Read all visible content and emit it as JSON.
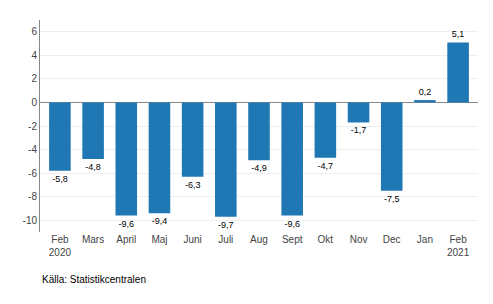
{
  "chart_data": {
    "type": "bar",
    "categories": [
      "Feb\n2020",
      "Mars",
      "April",
      "Maj",
      "Juni",
      "Juli",
      "Aug",
      "Sept",
      "Okt",
      "Nov",
      "Dec",
      "Jan",
      "Feb\n2021"
    ],
    "values": [
      -5.8,
      -4.8,
      -9.6,
      -9.4,
      -6.3,
      -9.7,
      -4.9,
      -9.6,
      -4.7,
      -1.7,
      -7.5,
      0.2,
      5.1
    ],
    "value_labels": [
      "-5,8",
      "-4,8",
      "-9,6",
      "-9,4",
      "-6,3",
      "-9,7",
      "-4,9",
      "-9,6",
      "-4,7",
      "-1,7",
      "-7,5",
      "0,2",
      "5,1"
    ],
    "data_labels": true,
    "color": "#1F77B4",
    "ylim": [
      -11,
      7
    ],
    "yticks": [
      -10,
      -8,
      -6,
      -4,
      -2,
      0,
      2,
      4,
      6
    ],
    "grid": true,
    "annotations": [
      "Källa: Statistikcentralen"
    ]
  }
}
